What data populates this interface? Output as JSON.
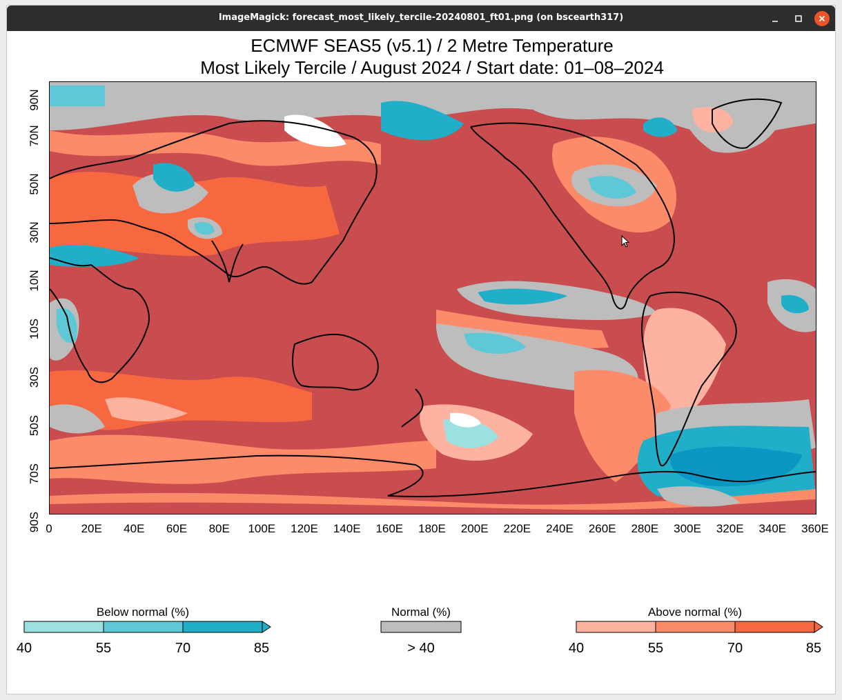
{
  "window": {
    "title": "ImageMagick: forecast_most_likely_tercile-20240801_ft01.png (on bscearth317)",
    "buttons": {
      "minimize": "minimize-icon",
      "maximize": "maximize-icon",
      "close": "close-icon"
    }
  },
  "figure": {
    "title_line1": "ECMWF SEAS5 (v5.1) / 2 Metre Temperature",
    "title_line2": "Most Likely Tercile / August 2024 / Start date: 01‒08‒2024",
    "x_ticks": [
      "0",
      "20E",
      "40E",
      "60E",
      "80E",
      "100E",
      "120E",
      "140E",
      "160E",
      "180E",
      "200E",
      "220E",
      "240E",
      "260E",
      "280E",
      "300E",
      "320E",
      "340E",
      "360E"
    ],
    "y_ticks": [
      "90N",
      "70N",
      "50N",
      "30N",
      "10N",
      "10S",
      "30S",
      "50S",
      "70S",
      "90S"
    ],
    "colors": {
      "ocean_dominant": "#c94d4f",
      "above_40": "#fdb3a0",
      "above_55": "#fc8b6a",
      "above_70": "#f86840",
      "normal": "#bdbdbd",
      "below_40": "#9de0e2",
      "below_55": "#5fc8d6",
      "below_70": "#21aec8",
      "below_85": "#0b96c4",
      "white": "#ffffff"
    }
  },
  "legend": {
    "below": {
      "title": "Below normal (%)",
      "labels": [
        "40",
        "55",
        "70",
        "85"
      ]
    },
    "normal": {
      "title": "Normal (%)",
      "label": "> 40"
    },
    "above": {
      "title": "Above normal (%)",
      "labels": [
        "40",
        "55",
        "70",
        "85"
      ]
    }
  }
}
